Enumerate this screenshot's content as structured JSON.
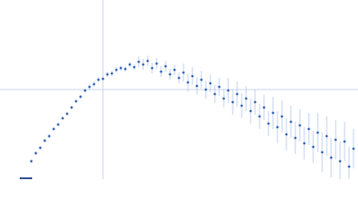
{
  "chart_data": {
    "type": "scatter",
    "x": [
      35,
      40,
      45,
      50,
      55,
      60,
      65,
      70,
      75,
      80,
      85,
      90,
      95,
      100,
      105,
      110,
      115,
      120,
      125,
      130,
      135,
      140,
      145,
      150,
      155,
      160,
      165,
      170,
      175,
      180,
      185,
      190,
      195,
      200,
      205,
      210,
      215,
      220,
      225,
      230,
      235,
      240,
      245,
      250,
      255,
      260,
      265,
      270,
      275,
      280,
      285,
      290,
      295,
      300,
      305,
      310,
      315,
      320,
      325,
      330,
      335,
      340,
      345,
      350,
      355,
      360,
      365,
      370,
      375,
      380,
      385,
      390,
      395
    ],
    "values": [
      20,
      29,
      35,
      43,
      48,
      56,
      61,
      68,
      73,
      80,
      87,
      92,
      99,
      103,
      106,
      111,
      112,
      117,
      118,
      122,
      124,
      123,
      128,
      125,
      131,
      128,
      132,
      124,
      129,
      120,
      126,
      117,
      122,
      113,
      119,
      108,
      115,
      104,
      111,
      100,
      107,
      95,
      103,
      90,
      99,
      86,
      95,
      82,
      90,
      76,
      86,
      70,
      80,
      62,
      74,
      58,
      70,
      50,
      64,
      46,
      60,
      40,
      56,
      36,
      52,
      30,
      48,
      24,
      44,
      20,
      42,
      14,
      34
    ],
    "errors": [
      2,
      2,
      2,
      2,
      2,
      2,
      2,
      2,
      2,
      2,
      2,
      2,
      2,
      3,
      3,
      3,
      3,
      3,
      3,
      3,
      3,
      3,
      3,
      3,
      6,
      6,
      6,
      6,
      6,
      6,
      6,
      6,
      6,
      6,
      10,
      10,
      10,
      10,
      10,
      10,
      10,
      10,
      10,
      10,
      14,
      14,
      14,
      14,
      14,
      14,
      14,
      14,
      14,
      14,
      18,
      18,
      18,
      18,
      18,
      18,
      18,
      18,
      18,
      18,
      22,
      22,
      22,
      22,
      22,
      22,
      22,
      22,
      22
    ],
    "color": "#3a68b8",
    "error_color": "#b3c7ea",
    "xlim": [
      0,
      400
    ],
    "ylim": [
      0,
      200
    ]
  }
}
